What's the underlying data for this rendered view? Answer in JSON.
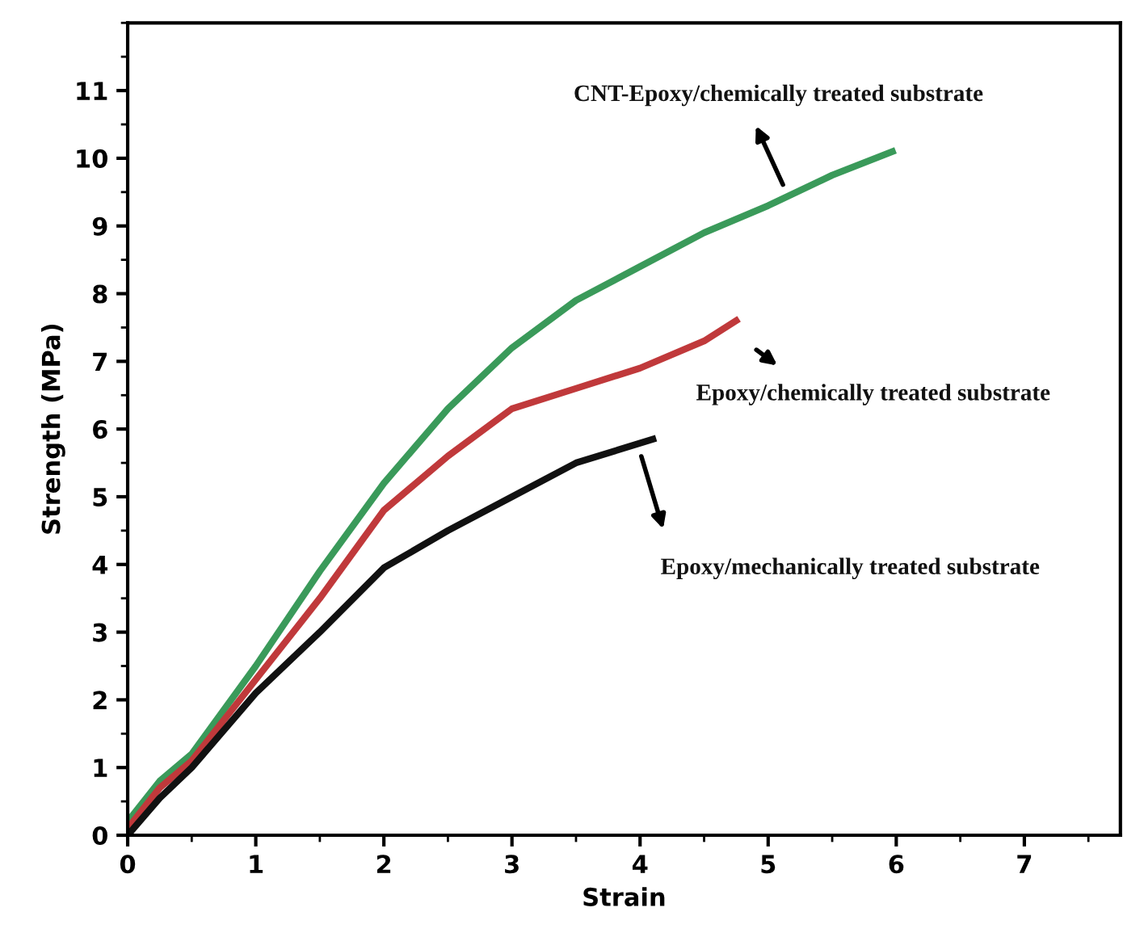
{
  "chart_data": {
    "type": "line",
    "xlabel": "Strain",
    "ylabel": "Strength (MPa)",
    "xlim": [
      0,
      7.75
    ],
    "ylim": [
      0,
      12
    ],
    "xticks": [
      0,
      1,
      2,
      3,
      4,
      5,
      6,
      7
    ],
    "yticks": [
      0,
      1,
      2,
      3,
      4,
      5,
      6,
      7,
      8,
      9,
      10,
      11
    ],
    "annotations": [
      "CNT-Epoxy/chemically treated substrate",
      "Epoxy/chemically treated substrate",
      "Epoxy/mechanically treated substrate"
    ],
    "grid": false,
    "legend": false,
    "marker": "none",
    "line_style": "solid",
    "series": [
      {
        "color": "#3a9a5a",
        "x": [
          0,
          0.25,
          0.5,
          1,
          1.5,
          2,
          2.5,
          3,
          3.5,
          4,
          4.5,
          5,
          5.5,
          5.97
        ],
        "values": [
          0.2,
          0.8,
          1.2,
          2.5,
          3.9,
          5.2,
          6.3,
          7.2,
          7.9,
          8.4,
          8.9,
          9.3,
          9.75,
          10.1
        ]
      },
      {
        "color": "#c0393b",
        "x": [
          0,
          0.25,
          0.5,
          1,
          1.5,
          2,
          2.5,
          3,
          3.5,
          4,
          4.5,
          4.75
        ],
        "values": [
          0.1,
          0.7,
          1.1,
          2.3,
          3.5,
          4.8,
          5.6,
          6.3,
          6.6,
          6.9,
          7.3,
          7.6
        ]
      },
      {
        "color": "#111111",
        "x": [
          0,
          0.25,
          0.5,
          1,
          1.5,
          2,
          2.5,
          3,
          3.5,
          4.1
        ],
        "values": [
          0,
          0.55,
          1.0,
          2.1,
          3.0,
          3.95,
          4.5,
          5.0,
          5.5,
          5.85
        ]
      }
    ]
  }
}
